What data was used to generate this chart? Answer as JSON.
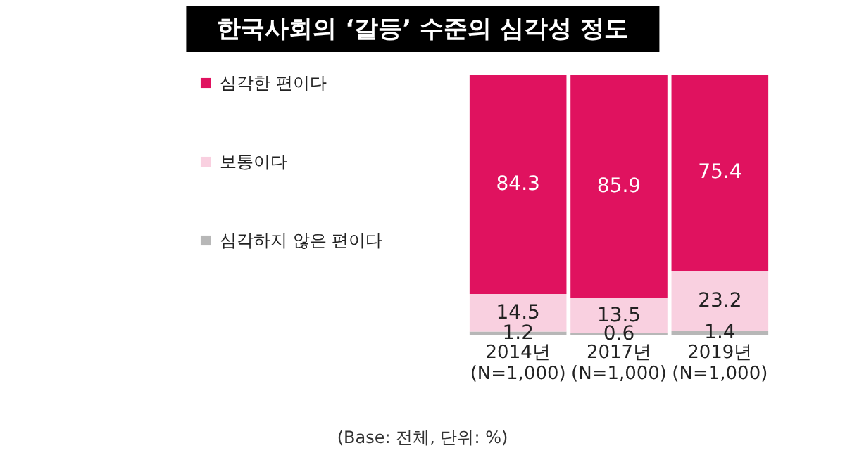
{
  "chart_data": {
    "type": "bar",
    "title": "한국사회의 ‘갈등’ 수준의 심각성 정도",
    "categories": [
      "2014년\n(N=1,000)",
      "2017년\n(N=1,000)",
      "2019년\n(N=1,000)"
    ],
    "stacked": true,
    "data_labels": true,
    "legend": "left",
    "series": [
      {
        "name": "심각하지 않은 편이다",
        "color": "#b7b7b7",
        "values": [
          1.2,
          0.6,
          1.4
        ]
      },
      {
        "name": "보통이다",
        "color": "#f9d0e0",
        "values": [
          14.5,
          13.5,
          23.2
        ]
      },
      {
        "name": "심각한 편이다",
        "color": "#e0125f",
        "values": [
          84.3,
          85.9,
          75.4
        ]
      }
    ],
    "annotations": [
      "(Base: 전체, 단위: %)"
    ]
  }
}
